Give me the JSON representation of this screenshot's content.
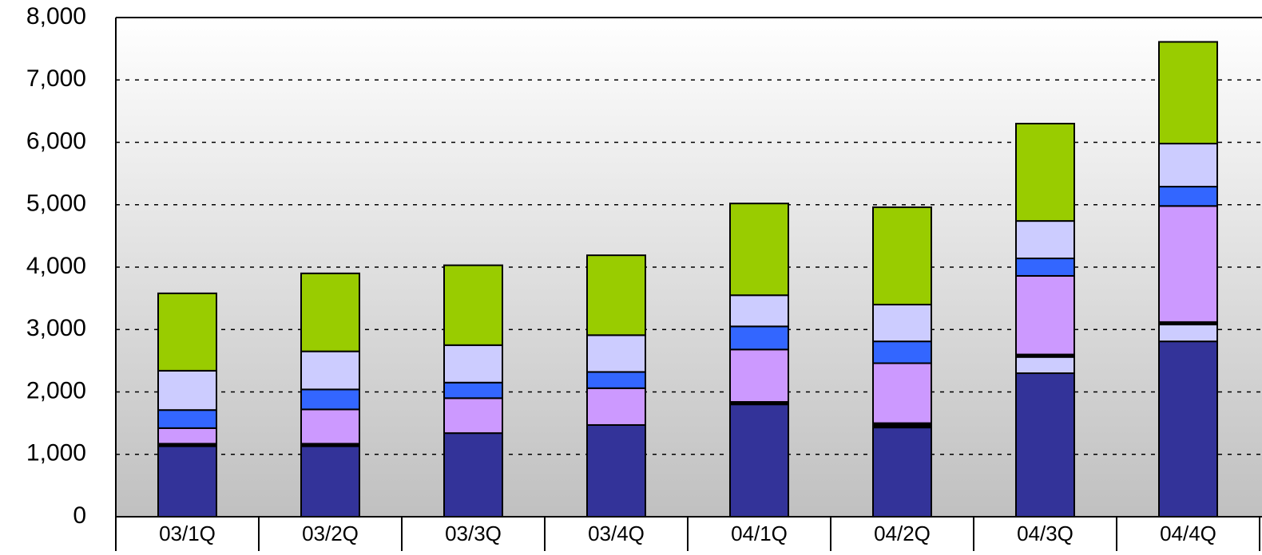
{
  "chart_data": {
    "type": "stacked_bar",
    "categories": [
      "03/1Q",
      "03/2Q",
      "03/3Q",
      "03/4Q",
      "04/1Q",
      "04/2Q",
      "04/3Q",
      "04/4Q"
    ],
    "series": [
      {
        "color": "#333399",
        "values": [
          1130,
          1130,
          1340,
          1470,
          1800,
          1430,
          2300,
          2810
        ]
      },
      {
        "color": "#ccccff",
        "values": [
          0,
          0,
          0,
          0,
          0,
          0,
          260,
          270
        ]
      },
      {
        "color": "#000000",
        "values": [
          40,
          40,
          0,
          0,
          40,
          70,
          40,
          40
        ]
      },
      {
        "color": "#cc99ff",
        "values": [
          250,
          550,
          560,
          590,
          840,
          960,
          1260,
          1860
        ]
      },
      {
        "color": "#3366ff",
        "values": [
          290,
          320,
          250,
          260,
          370,
          350,
          280,
          310
        ]
      },
      {
        "color": "#ccccff",
        "values": [
          630,
          610,
          600,
          590,
          500,
          590,
          600,
          690
        ]
      },
      {
        "color": "#99cc00",
        "values": [
          1240,
          1250,
          1280,
          1280,
          1470,
          1560,
          1560,
          1630
        ]
      }
    ],
    "ylim": [
      0,
      8000
    ],
    "yticks": [
      0,
      {
        "value": 1000,
        "label": "1,000"
      },
      {
        "value": 2000,
        "label": "2,000"
      },
      {
        "value": 3000,
        "label": "3,000"
      },
      {
        "value": 4000,
        "label": "4,000"
      },
      {
        "value": 5000,
        "label": "5,000"
      },
      {
        "value": 6000,
        "label": "6,000"
      },
      {
        "value": 7000,
        "label": "7,000"
      },
      {
        "value": 8000,
        "label": "8,000"
      }
    ],
    "grid": true
  }
}
